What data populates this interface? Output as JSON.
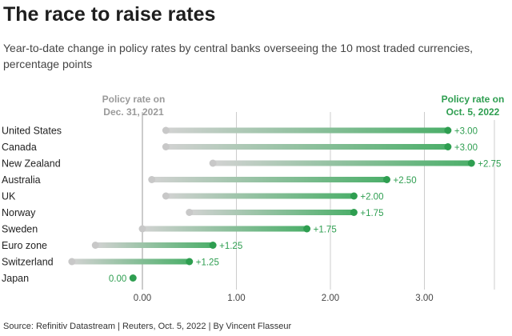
{
  "chart_data": {
    "type": "dumbbell",
    "title": "The race to raise rates",
    "subtitle": "Year-to-date change in policy rates by central banks overseeing the 10 most traded currencies, percentage points",
    "source": "Source: Refinitiv Datastream | Reuters, Oct. 5, 2022 | By Vincent Flasseur",
    "start_label": [
      "Policy rate on",
      "Dec. 31, 2021"
    ],
    "end_label": [
      "Policy rate on",
      "Oct. 5, 2022"
    ],
    "xlim": [
      -0.75,
      3.5
    ],
    "xticks": [
      0,
      1,
      2,
      3
    ],
    "xtick_labels": [
      "0.00",
      "1.00",
      "2.00",
      "3.00"
    ],
    "grid": true,
    "rows": [
      {
        "name": "United States",
        "start": 0.25,
        "end": 3.25,
        "label": "+3.00"
      },
      {
        "name": "Canada",
        "start": 0.25,
        "end": 3.25,
        "label": "+3.00"
      },
      {
        "name": "New Zealand",
        "start": 0.75,
        "end": 3.5,
        "label": "+2.75"
      },
      {
        "name": "Australia",
        "start": 0.1,
        "end": 2.6,
        "label": "+2.50"
      },
      {
        "name": "UK",
        "start": 0.25,
        "end": 2.25,
        "label": "+2.00"
      },
      {
        "name": "Norway",
        "start": 0.5,
        "end": 2.25,
        "label": "+1.75"
      },
      {
        "name": "Sweden",
        "start": 0.0,
        "end": 1.75,
        "label": "+1.75"
      },
      {
        "name": "Euro zone",
        "start": -0.5,
        "end": 0.75,
        "label": "+1.25"
      },
      {
        "name": "Switzerland",
        "start": -0.75,
        "end": 0.5,
        "label": "+1.25"
      },
      {
        "name": "Japan",
        "start": -0.1,
        "end": -0.1,
        "label": "0.00"
      }
    ],
    "colors": {
      "start": "#c8c8c8",
      "end": "#2e9e50",
      "grid": "#cccccc"
    }
  }
}
